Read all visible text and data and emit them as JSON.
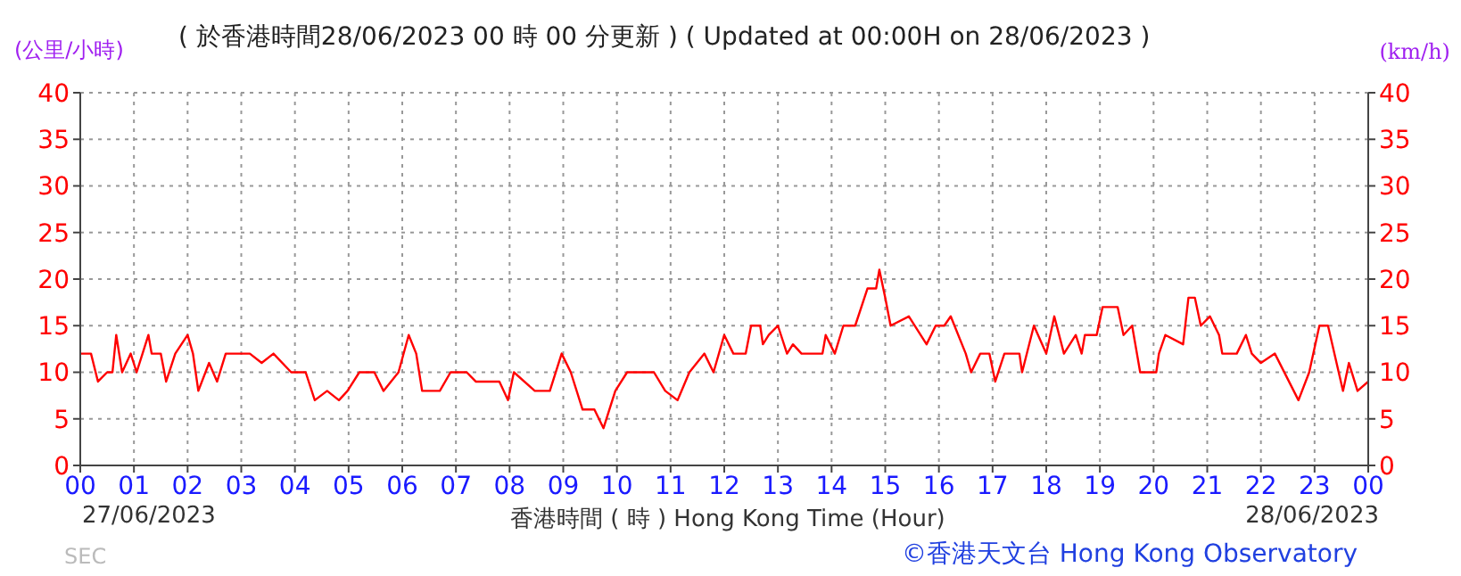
{
  "chart_data": {
    "type": "line",
    "title": "( 於香港時間28/06/2023 00 時 00 分更新 ) ( Updated at 00:00H on 28/06/2023 )",
    "xlabel": "香港時間 ( 時 ) Hong Kong Time (Hour)",
    "ylabel": "(公里/小時)",
    "y2label": "(km/h)",
    "annotations": [
      "27/06/2023",
      "28/06/2023",
      "©香港天文台 Hong Kong Observatory",
      "SEC"
    ],
    "x": [
      0,
      0.2,
      0.33,
      0.5,
      0.6,
      0.67,
      0.78,
      0.94,
      1.05,
      1.16,
      1.27,
      1.33,
      1.5,
      1.6,
      1.77,
      2.0,
      2.1,
      2.2,
      2.4,
      2.55,
      2.71,
      3.16,
      3.38,
      3.6,
      3.93,
      4.2,
      4.37,
      4.6,
      4.82,
      4.98,
      5.2,
      5.48,
      5.65,
      5.93,
      6.12,
      6.26,
      6.37,
      6.7,
      6.9,
      7.2,
      7.37,
      7.81,
      7.97,
      8.08,
      8.47,
      8.75,
      8.97,
      9.14,
      9.36,
      9.58,
      9.75,
      9.97,
      10.19,
      10.69,
      10.9,
      11.13,
      11.35,
      11.63,
      11.8,
      12.0,
      12.17,
      12.4,
      12.5,
      12.67,
      12.72,
      12.83,
      13.0,
      13.17,
      13.28,
      13.44,
      13.83,
      13.89,
      14.06,
      14.22,
      14.44,
      14.67,
      14.83,
      14.89,
      15.0,
      15.1,
      15.44,
      15.77,
      15.94,
      16.1,
      16.22,
      16.5,
      16.6,
      16.77,
      16.94,
      17.05,
      17.22,
      17.5,
      17.55,
      17.77,
      18.0,
      18.15,
      18.33,
      18.55,
      18.66,
      18.72,
      18.94,
      19.05,
      19.33,
      19.44,
      19.6,
      19.75,
      20.05,
      20.1,
      20.22,
      20.55,
      20.65,
      20.77,
      20.88,
      21.05,
      21.22,
      21.28,
      21.55,
      21.72,
      21.83,
      22.0,
      22.26,
      22.7,
      22.9,
      23.09,
      23.25,
      23.53,
      23.64,
      23.8,
      24
    ],
    "series": [
      {
        "color": "#ff0000",
        "values": [
          12,
          12,
          9,
          10,
          10,
          14,
          10,
          12,
          10,
          12,
          14,
          12,
          12,
          9,
          12,
          14,
          12,
          8,
          11,
          9,
          12,
          12,
          11,
          12,
          10,
          10,
          7,
          8,
          7,
          8,
          10,
          10,
          8,
          10,
          14,
          12,
          8,
          8,
          10,
          10,
          9,
          9,
          7,
          10,
          8,
          8,
          12,
          10,
          6,
          6,
          4,
          8,
          10,
          10,
          8,
          7,
          10,
          12,
          10,
          14,
          12,
          12,
          15,
          15,
          13,
          14,
          15,
          12,
          13,
          12,
          12,
          14,
          12,
          15,
          15,
          19,
          19,
          21,
          18,
          15,
          16,
          13,
          15,
          15,
          16,
          12,
          10,
          12,
          12,
          9,
          12,
          12,
          10,
          15,
          12,
          16,
          12,
          14,
          12,
          14,
          14,
          17,
          17,
          14,
          15,
          10,
          10,
          12,
          14,
          13,
          18,
          18,
          15,
          16,
          14,
          12,
          12,
          14,
          12,
          11,
          12,
          7,
          10,
          15,
          15,
          8,
          11,
          8,
          9
        ]
      }
    ],
    "xlim": [
      0,
      24
    ],
    "xticks": [
      {
        "value": 0,
        "label": "00"
      },
      {
        "value": 1,
        "label": "01"
      },
      {
        "value": 2,
        "label": "02"
      },
      {
        "value": 3,
        "label": "03"
      },
      {
        "value": 4,
        "label": "04"
      },
      {
        "value": 5,
        "label": "05"
      },
      {
        "value": 6,
        "label": "06"
      },
      {
        "value": 7,
        "label": "07"
      },
      {
        "value": 8,
        "label": "08"
      },
      {
        "value": 9,
        "label": "09"
      },
      {
        "value": 10,
        "label": "10"
      },
      {
        "value": 11,
        "label": "11"
      },
      {
        "value": 12,
        "label": "12"
      },
      {
        "value": 13,
        "label": "13"
      },
      {
        "value": 14,
        "label": "14"
      },
      {
        "value": 15,
        "label": "15"
      },
      {
        "value": 16,
        "label": "16"
      },
      {
        "value": 17,
        "label": "17"
      },
      {
        "value": 18,
        "label": "18"
      },
      {
        "value": 19,
        "label": "19"
      },
      {
        "value": 20,
        "label": "20"
      },
      {
        "value": 21,
        "label": "21"
      },
      {
        "value": 22,
        "label": "22"
      },
      {
        "value": 23,
        "label": "23"
      },
      {
        "value": 24,
        "label": "00"
      }
    ],
    "ylim": [
      0,
      40
    ],
    "yticks": [
      0,
      5,
      10,
      15,
      20,
      25,
      30,
      35,
      40
    ],
    "y2lim": [
      0,
      40
    ],
    "y2ticks": [
      0,
      5,
      10,
      15,
      20,
      25,
      30,
      35,
      40
    ],
    "grid": true,
    "legend": false,
    "marker": "none",
    "line_style": "solid"
  }
}
